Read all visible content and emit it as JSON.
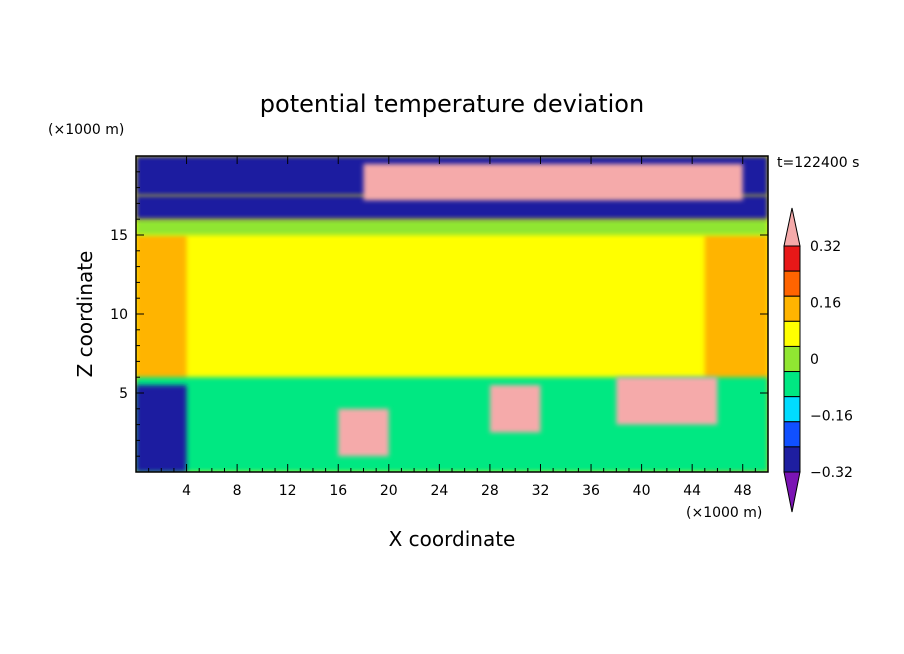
{
  "chart_data": {
    "type": "heatmap",
    "title": "potential temperature deviation",
    "xlabel": "X coordinate",
    "ylabel": "Z coordinate",
    "x_unit": "(×1000 m)",
    "y_unit": "(×1000 m)",
    "time_label": "t=122400 s",
    "xlim": [
      0,
      50
    ],
    "ylim": [
      0,
      20
    ],
    "x_ticks": [
      4,
      8,
      12,
      16,
      20,
      24,
      28,
      32,
      36,
      40,
      44,
      48
    ],
    "y_ticks": [
      5,
      10,
      15
    ],
    "colorbar": {
      "levels": [
        -0.4,
        -0.32,
        -0.24,
        -0.16,
        -0.08,
        0,
        0.08,
        0.16,
        0.24,
        0.32,
        0.4
      ],
      "tick_labels": [
        "0.32",
        "0.16",
        "0",
        "−0.16",
        "−0.32"
      ],
      "tick_values": [
        0.32,
        0.16,
        0,
        -0.16,
        -0.32
      ],
      "colors": [
        "#7b14b4",
        "#1e1ea0",
        "#1050ff",
        "#00dcff",
        "#00e882",
        "#90e632",
        "#ffff00",
        "#ffb400",
        "#ff6400",
        "#e81818",
        "#f5aaaa"
      ],
      "extend": "both"
    },
    "field_regions": [
      {
        "desc": "background",
        "level": 0.04
      },
      {
        "x": [
          0,
          4
        ],
        "y": [
          0,
          15
        ],
        "level": 0.12
      },
      {
        "x": [
          45,
          50
        ],
        "y": [
          0,
          15
        ],
        "level": 0.12
      },
      {
        "x": [
          0,
          50
        ],
        "y": [
          15,
          16
        ],
        "level": -0.04
      },
      {
        "x": [
          0,
          50
        ],
        "y": [
          16,
          17.5
        ],
        "level": -0.36
      },
      {
        "x": [
          0,
          50
        ],
        "y": [
          17.5,
          20
        ],
        "level": -0.44
      },
      {
        "x": [
          18,
          48
        ],
        "y": [
          17.2,
          19.5
        ],
        "level": 0.44
      },
      {
        "x": [
          0,
          50
        ],
        "y": [
          0,
          6
        ],
        "level": -0.12
      },
      {
        "x": [
          0,
          4
        ],
        "y": [
          0,
          5.5
        ],
        "level": -0.36
      },
      {
        "x": [
          38,
          46
        ],
        "y": [
          3,
          6
        ],
        "level": 0.44
      },
      {
        "x": [
          28,
          32
        ],
        "y": [
          2.5,
          5.5
        ],
        "level": 0.44
      },
      {
        "x": [
          16,
          20
        ],
        "y": [
          1,
          4
        ],
        "level": 0.36
      }
    ]
  }
}
